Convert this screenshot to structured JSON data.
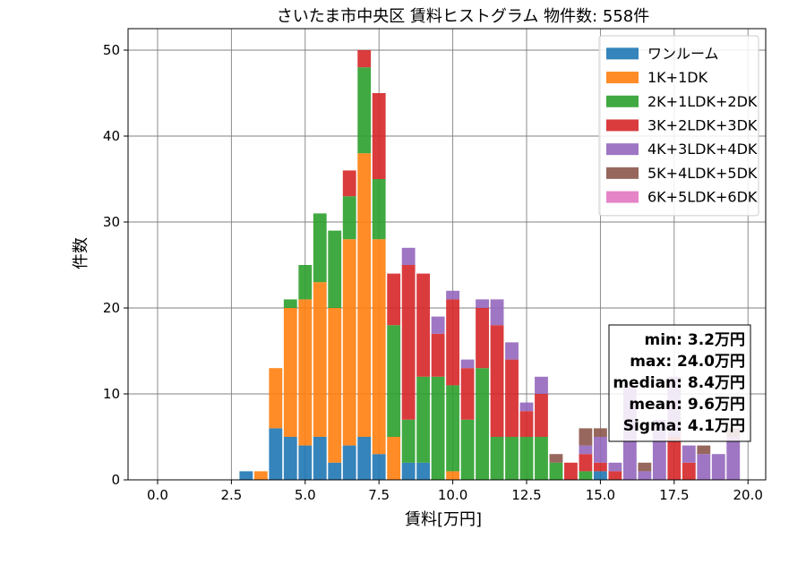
{
  "chart_data": {
    "type": "bar",
    "stacked": true,
    "title": "さいたま市中央区 賃料ヒストグラム  物件数: 558件",
    "xlabel": "賃料[万円]",
    "ylabel": "件数",
    "xlim": [
      -1.0,
      20.6
    ],
    "ylim": [
      0,
      52.5
    ],
    "xticks": [
      0.0,
      2.5,
      5.0,
      7.5,
      10.0,
      12.5,
      15.0,
      17.5,
      20.0
    ],
    "xtick_labels": [
      "0.0",
      "2.5",
      "5.0",
      "7.5",
      "10.0",
      "12.5",
      "15.0",
      "17.5",
      "20.0"
    ],
    "yticks": [
      0,
      10,
      20,
      30,
      40,
      50
    ],
    "ytick_labels": [
      "0",
      "10",
      "20",
      "30",
      "40",
      "50"
    ],
    "grid": true,
    "legend_position": "top-right",
    "bin_width": 0.5,
    "x": [
      3.0,
      3.5,
      4.0,
      4.5,
      5.0,
      5.5,
      6.0,
      6.5,
      7.0,
      7.5,
      8.0,
      8.5,
      9.0,
      9.5,
      10.0,
      10.5,
      11.0,
      11.5,
      12.0,
      12.5,
      13.0,
      13.5,
      14.0,
      14.5,
      15.0,
      15.5,
      16.0,
      16.5,
      17.0,
      17.5,
      18.0,
      18.5,
      19.0,
      19.5
    ],
    "series": [
      {
        "name": "ワンルーム",
        "color": "#1f77b4",
        "values": [
          1,
          0,
          6,
          5,
          4,
          5,
          2,
          4,
          5,
          3,
          0,
          2,
          2,
          0,
          0,
          0,
          0,
          0,
          0,
          0,
          0,
          0,
          0,
          0,
          1,
          0,
          0,
          0,
          0,
          0,
          0,
          0,
          0,
          0
        ]
      },
      {
        "name": "1K+1DK",
        "color": "#ff7f0e",
        "values": [
          0,
          1,
          7,
          15,
          17,
          18,
          18,
          24,
          33,
          25,
          5,
          0,
          0,
          0,
          1,
          0,
          0,
          0,
          0,
          0,
          0,
          0,
          0,
          0,
          0,
          0,
          0,
          0,
          0,
          0,
          0,
          0,
          0,
          0
        ]
      },
      {
        "name": "2K+1LDK+2DK",
        "color": "#2ca02c",
        "values": [
          0,
          0,
          0,
          1,
          4,
          8,
          9,
          5,
          10,
          7,
          13,
          5,
          10,
          12,
          10,
          7,
          13,
          5,
          5,
          5,
          5,
          2,
          0,
          1,
          0,
          0,
          0,
          0,
          0,
          0,
          0,
          0,
          0,
          0
        ]
      },
      {
        "name": "3K+2LDK+3DK",
        "color": "#d62728",
        "values": [
          0,
          0,
          0,
          0,
          0,
          0,
          0,
          3,
          2,
          10,
          6,
          18,
          12,
          5,
          10,
          6,
          7,
          13,
          9,
          3,
          5,
          0,
          2,
          2,
          1,
          1,
          0,
          0,
          0,
          5,
          2,
          0,
          0,
          0
        ]
      },
      {
        "name": "4K+3LDK+4DK",
        "color": "#9467bd",
        "values": [
          0,
          0,
          0,
          0,
          0,
          0,
          0,
          0,
          0,
          0,
          0,
          2,
          0,
          2,
          1,
          1,
          1,
          3,
          2,
          1,
          2,
          0,
          0,
          1,
          3,
          1,
          11,
          1,
          7,
          7,
          2,
          3,
          3,
          5
        ]
      },
      {
        "name": "5K+4LDK+5DK",
        "color": "#8c564b",
        "values": [
          0,
          0,
          0,
          0,
          0,
          0,
          0,
          0,
          0,
          0,
          0,
          0,
          0,
          0,
          0,
          0,
          0,
          0,
          0,
          0,
          0,
          1,
          0,
          2,
          1,
          0,
          0,
          1,
          0,
          0,
          0,
          1,
          0,
          1
        ]
      },
      {
        "name": "6K+5LDK+6DK",
        "color": "#e377c2",
        "values": [
          0,
          0,
          0,
          0,
          0,
          0,
          0,
          0,
          0,
          0,
          0,
          0,
          0,
          0,
          0,
          0,
          0,
          0,
          0,
          0,
          0,
          0,
          0,
          0,
          0,
          0,
          0,
          0,
          0,
          0,
          0,
          0,
          0,
          0
        ]
      }
    ],
    "annotation_lines": [
      "min: 3.2万円",
      "max: 24.0万円",
      "median: 8.4万円",
      "mean: 9.6万円",
      "Sigma: 4.1万円"
    ]
  }
}
